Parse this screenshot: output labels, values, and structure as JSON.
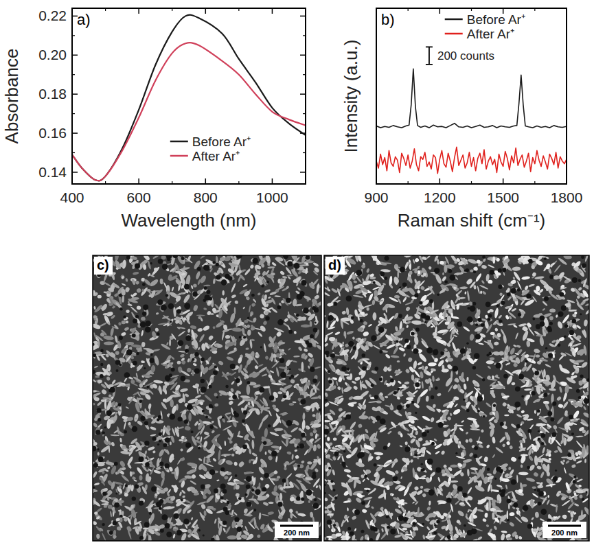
{
  "chart_data": [
    {
      "type": "line",
      "label": "a)",
      "x_label": "Wavelength (nm)",
      "y_label": "Absorbance",
      "x": [
        400,
        430,
        470,
        500,
        550,
        600,
        650,
        700,
        740,
        780,
        850,
        900,
        950,
        1000,
        1050,
        1100
      ],
      "series": [
        {
          "name": "Before Ar⁺",
          "color": "#1a1a1a",
          "values": [
            0.149,
            0.142,
            0.136,
            0.138,
            0.152,
            0.172,
            0.195,
            0.212,
            0.22,
            0.219,
            0.211,
            0.198,
            0.186,
            0.173,
            0.165,
            0.159
          ]
        },
        {
          "name": "After Ar⁺",
          "color": "#d0405a",
          "values": [
            0.149,
            0.142,
            0.136,
            0.138,
            0.151,
            0.168,
            0.187,
            0.201,
            0.206,
            0.205,
            0.197,
            0.19,
            0.18,
            0.171,
            0.167,
            0.164
          ]
        }
      ],
      "xlim": [
        400,
        1100
      ],
      "ylim": [
        0.134,
        0.224
      ],
      "xticks": [
        400,
        600,
        800,
        1000
      ],
      "yticks": [
        0.14,
        0.16,
        0.18,
        {
          "value": 0.2,
          "label": "0.20"
        },
        0.22
      ],
      "legend": "lower right"
    },
    {
      "type": "line",
      "label": "b)",
      "x_label": "Raman shift (cm⁻¹)",
      "y_label": "Intensity (a.u.)",
      "series": [
        {
          "name": "Before Ar⁺",
          "color": "#1a1a1a",
          "x": [
            900,
            920,
            940,
            960,
            980,
            1000,
            1020,
            1040,
            1055,
            1065,
            1075,
            1085,
            1095,
            1110,
            1130,
            1150,
            1170,
            1190,
            1210,
            1230,
            1250,
            1270,
            1290,
            1310,
            1330,
            1350,
            1370,
            1390,
            1410,
            1430,
            1450,
            1470,
            1490,
            1510,
            1530,
            1550,
            1565,
            1575,
            1585,
            1595,
            1605,
            1620,
            1640,
            1660,
            1680,
            1700,
            1720,
            1740,
            1760,
            1780,
            1800
          ],
          "values": [
            660,
            640,
            655,
            645,
            665,
            650,
            640,
            660,
            670,
            900,
            1310,
            880,
            665,
            645,
            660,
            640,
            670,
            650,
            655,
            640,
            665,
            690,
            650,
            645,
            660,
            640,
            655,
            670,
            645,
            650,
            665,
            640,
            660,
            650,
            645,
            660,
            665,
            920,
            1240,
            900,
            660,
            650,
            640,
            660,
            645,
            655,
            640,
            665,
            650,
            645,
            655
          ]
        },
        {
          "name": "After Ar⁺",
          "color": "#e0201c",
          "x": [
            900,
            910,
            920,
            930,
            940,
            950,
            960,
            970,
            980,
            990,
            1000,
            1010,
            1020,
            1030,
            1040,
            1050,
            1060,
            1070,
            1080,
            1090,
            1100,
            1110,
            1120,
            1130,
            1140,
            1150,
            1160,
            1170,
            1180,
            1190,
            1200,
            1210,
            1220,
            1230,
            1240,
            1250,
            1260,
            1270,
            1280,
            1290,
            1300,
            1310,
            1320,
            1330,
            1340,
            1350,
            1360,
            1370,
            1380,
            1390,
            1400,
            1410,
            1420,
            1430,
            1440,
            1450,
            1460,
            1470,
            1480,
            1490,
            1500,
            1510,
            1520,
            1530,
            1540,
            1550,
            1560,
            1570,
            1580,
            1590,
            1600,
            1610,
            1620,
            1630,
            1640,
            1650,
            1660,
            1670,
            1680,
            1690,
            1700,
            1710,
            1720,
            1730,
            1740,
            1750,
            1760,
            1770,
            1780,
            1790,
            1800
          ],
          "values": [
            260,
            180,
            340,
            220,
            300,
            150,
            380,
            240,
            200,
            310,
            270,
            130,
            350,
            290,
            210,
            330,
            180,
            260,
            400,
            220,
            150,
            310,
            280,
            360,
            200,
            250,
            170,
            330,
            300,
            120,
            280,
            380,
            230,
            190,
            350,
            260,
            140,
            300,
            420,
            210,
            270,
            330,
            180,
            240,
            360,
            200,
            300,
            150,
            290,
            350,
            230,
            390,
            170,
            260,
            310,
            220,
            280,
            130,
            340,
            250,
            200,
            370,
            290,
            160,
            320,
            240,
            410,
            210,
            280,
            330,
            190,
            260,
            350,
            140,
            300,
            230,
            380,
            270,
            200,
            320,
            250,
            170,
            340,
            290,
            220,
            360,
            180,
            310,
            260,
            230,
            280
          ]
        }
      ],
      "xlim": [
        900,
        1800
      ],
      "ylim": [
        0,
        2000
      ],
      "xticks": [
        900,
        1200,
        1500,
        1800
      ],
      "tick_labels": "x",
      "legend": "upper right",
      "scale_bar": {
        "value": 200,
        "label": "200 counts"
      }
    }
  ],
  "images": [
    {
      "label": "c)",
      "scale_bar": "200 nm"
    },
    {
      "label": "d)",
      "scale_bar": "200 nm"
    }
  ]
}
